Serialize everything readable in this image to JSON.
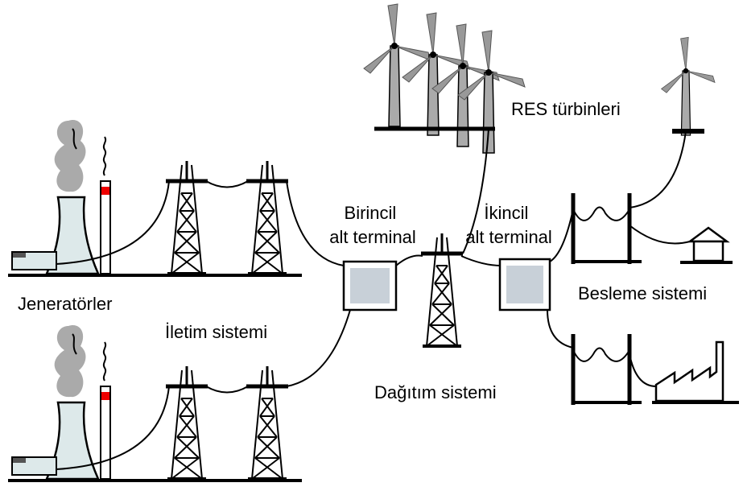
{
  "labels": {
    "wind_turbines": "RES türbinleri",
    "primary_substation": [
      "Birincil",
      "alt terminal"
    ],
    "secondary_substation": [
      "İkincil",
      "alt terminal"
    ],
    "generators": "Jeneratörler",
    "transmission": "İletim sistemi",
    "distribution": "Dağıtım sistemi",
    "supply": "Besleme sistemi"
  }
}
